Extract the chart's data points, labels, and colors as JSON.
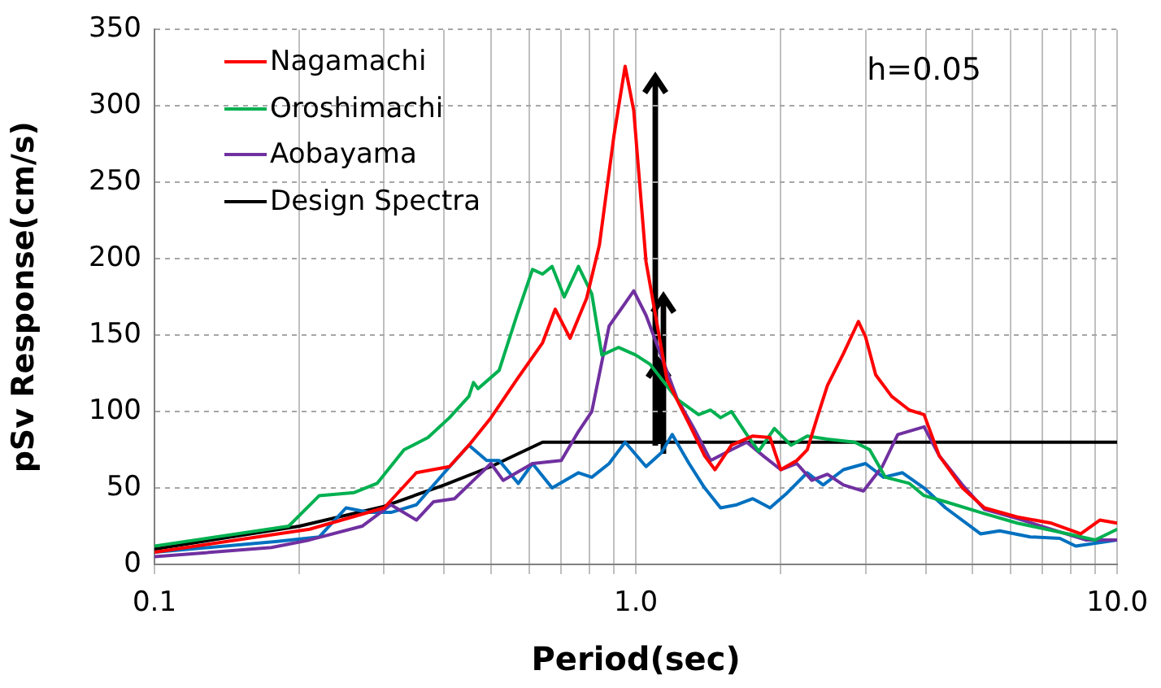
{
  "chart_data": {
    "type": "line",
    "xlabel": "Period(sec)",
    "ylabel": "pSv Response(cm/s)",
    "log": "x",
    "grid": true,
    "legend": "top left",
    "marker": "none",
    "line_style": "solid",
    "xlim": [
      0.1,
      10
    ],
    "ylim": [
      0,
      350
    ],
    "xticks": [
      {
        "value": 0.1,
        "label": "0.1"
      },
      {
        "value": 0.2,
        "label": null
      },
      {
        "value": 0.3,
        "label": null
      },
      {
        "value": 0.4,
        "label": null
      },
      {
        "value": 0.5,
        "label": null
      },
      {
        "value": 0.6,
        "label": null
      },
      {
        "value": 0.7,
        "label": null
      },
      {
        "value": 0.8,
        "label": null
      },
      {
        "value": 0.9,
        "label": null
      },
      {
        "value": 1,
        "label": "1.0"
      },
      {
        "value": 2,
        "label": null
      },
      {
        "value": 3,
        "label": null
      },
      {
        "value": 4,
        "label": null
      },
      {
        "value": 5,
        "label": null
      },
      {
        "value": 6,
        "label": null
      },
      {
        "value": 7,
        "label": null
      },
      {
        "value": 8,
        "label": null
      },
      {
        "value": 9,
        "label": null
      },
      {
        "value": 10,
        "label": "10.0"
      }
    ],
    "yticks": [
      0,
      50,
      100,
      150,
      200,
      250,
      300,
      350
    ],
    "annotations": [
      "h=0.05"
    ],
    "series": [
      {
        "name": "Nagamachi",
        "color": "#ff0000",
        "x": [
          0.1,
          0.21,
          0.3,
          0.35,
          0.41,
          0.45,
          0.5,
          0.566,
          0.64,
          0.68,
          0.73,
          0.79,
          0.84,
          0.9,
          0.95,
          0.99,
          1.05,
          1.1,
          1.16,
          1.29,
          1.39,
          1.46,
          1.58,
          1.75,
          1.9,
          2.0,
          2.16,
          2.27,
          2.38,
          2.5,
          2.7,
          2.9,
          3.0,
          3.15,
          3.4,
          3.7,
          3.97,
          4.27,
          4.77,
          5.3,
          6.2,
          7.3,
          8.4,
          9.2,
          10
        ],
        "values": [
          8,
          23,
          37,
          60,
          64,
          78,
          96,
          121,
          145,
          167,
          148,
          174,
          209,
          280,
          326,
          297,
          198,
          null,
          121,
          92,
          71,
          62,
          78,
          84,
          83,
          62,
          68,
          75,
          96,
          117,
          138,
          159,
          149,
          124,
          110,
          101,
          98,
          71,
          50,
          37,
          31,
          27,
          20,
          29,
          27
        ]
      },
      {
        "name": "Oroshimachi",
        "color": "#00b050",
        "x": [
          0.1,
          0.19,
          0.22,
          0.26,
          0.29,
          0.33,
          0.37,
          0.41,
          0.45,
          0.46,
          0.47,
          0.52,
          0.566,
          0.61,
          0.64,
          0.67,
          0.71,
          0.76,
          0.81,
          0.85,
          0.92,
          1.0,
          1.07,
          1.13,
          1.22,
          1.35,
          1.43,
          1.5,
          1.58,
          1.7,
          1.8,
          1.94,
          2.1,
          2.27,
          2.5,
          2.85,
          3.06,
          3.3,
          3.7,
          3.97,
          4.4,
          5.2,
          6.2,
          7.9,
          9.0,
          10
        ],
        "values": [
          12,
          25,
          45,
          47,
          53,
          75,
          83,
          96,
          110,
          119,
          115,
          127,
          163,
          193,
          190,
          195,
          175,
          195,
          177,
          137,
          142,
          137,
          131,
          null,
          108,
          98,
          101,
          96,
          100,
          85,
          74,
          89,
          78,
          84,
          82,
          80,
          75,
          57,
          53,
          45,
          41,
          34,
          27,
          20,
          16,
          23
        ]
      },
      {
        "name": "Aobayama",
        "color": "#7030a0",
        "x": [
          0.1,
          0.175,
          0.21,
          0.27,
          0.31,
          0.35,
          0.38,
          0.42,
          0.46,
          0.5,
          0.53,
          0.61,
          0.7,
          0.76,
          0.81,
          0.88,
          0.99,
          1.05,
          1.12,
          1.22,
          1.32,
          1.43,
          1.58,
          1.7,
          1.84,
          2.0,
          2.16,
          2.32,
          2.5,
          2.7,
          2.97,
          3.25,
          3.5,
          3.97,
          4.27,
          4.77,
          5.3,
          6.2,
          7.3,
          8.6,
          10
        ],
        "values": [
          5,
          11,
          16,
          25,
          39,
          29,
          41,
          43,
          55,
          66,
          55,
          66,
          68,
          87,
          100,
          156,
          179,
          163,
          null,
          108,
          89,
          68,
          75,
          80,
          71,
          62,
          66,
          55,
          59,
          52,
          48,
          64,
          85,
          90,
          71,
          52,
          36,
          30,
          23,
          16,
          16
        ]
      },
      {
        "color": "#0070c0",
        "x": [
          0.1,
          0.18,
          0.22,
          0.25,
          0.28,
          0.31,
          0.35,
          0.4,
          0.45,
          0.49,
          0.52,
          0.57,
          0.61,
          0.67,
          0.76,
          0.81,
          0.88,
          0.95,
          1.05,
          1.13,
          1.19,
          1.29,
          1.39,
          1.5,
          1.62,
          1.75,
          1.9,
          2.05,
          2.27,
          2.45,
          2.7,
          3.0,
          3.27,
          3.58,
          3.97,
          4.4,
          5.2,
          5.7,
          6.6,
          7.6,
          8.2,
          10
        ],
        "values": [
          8,
          15,
          18,
          37,
          34,
          34,
          39,
          60,
          78,
          68,
          68,
          53,
          66,
          50,
          60,
          57,
          66,
          80,
          64,
          73,
          85,
          66,
          50,
          37,
          39,
          43,
          37,
          46,
          60,
          52,
          62,
          66,
          57,
          60,
          50,
          37,
          20,
          22,
          18,
          17,
          12,
          16
        ]
      },
      {
        "name": "Design Spectra",
        "color": "#000000",
        "x": [
          0.1,
          0.2,
          0.3,
          0.4,
          0.5,
          0.64,
          10
        ],
        "values": [
          10,
          25,
          38,
          52,
          64,
          80,
          80
        ]
      }
    ]
  }
}
